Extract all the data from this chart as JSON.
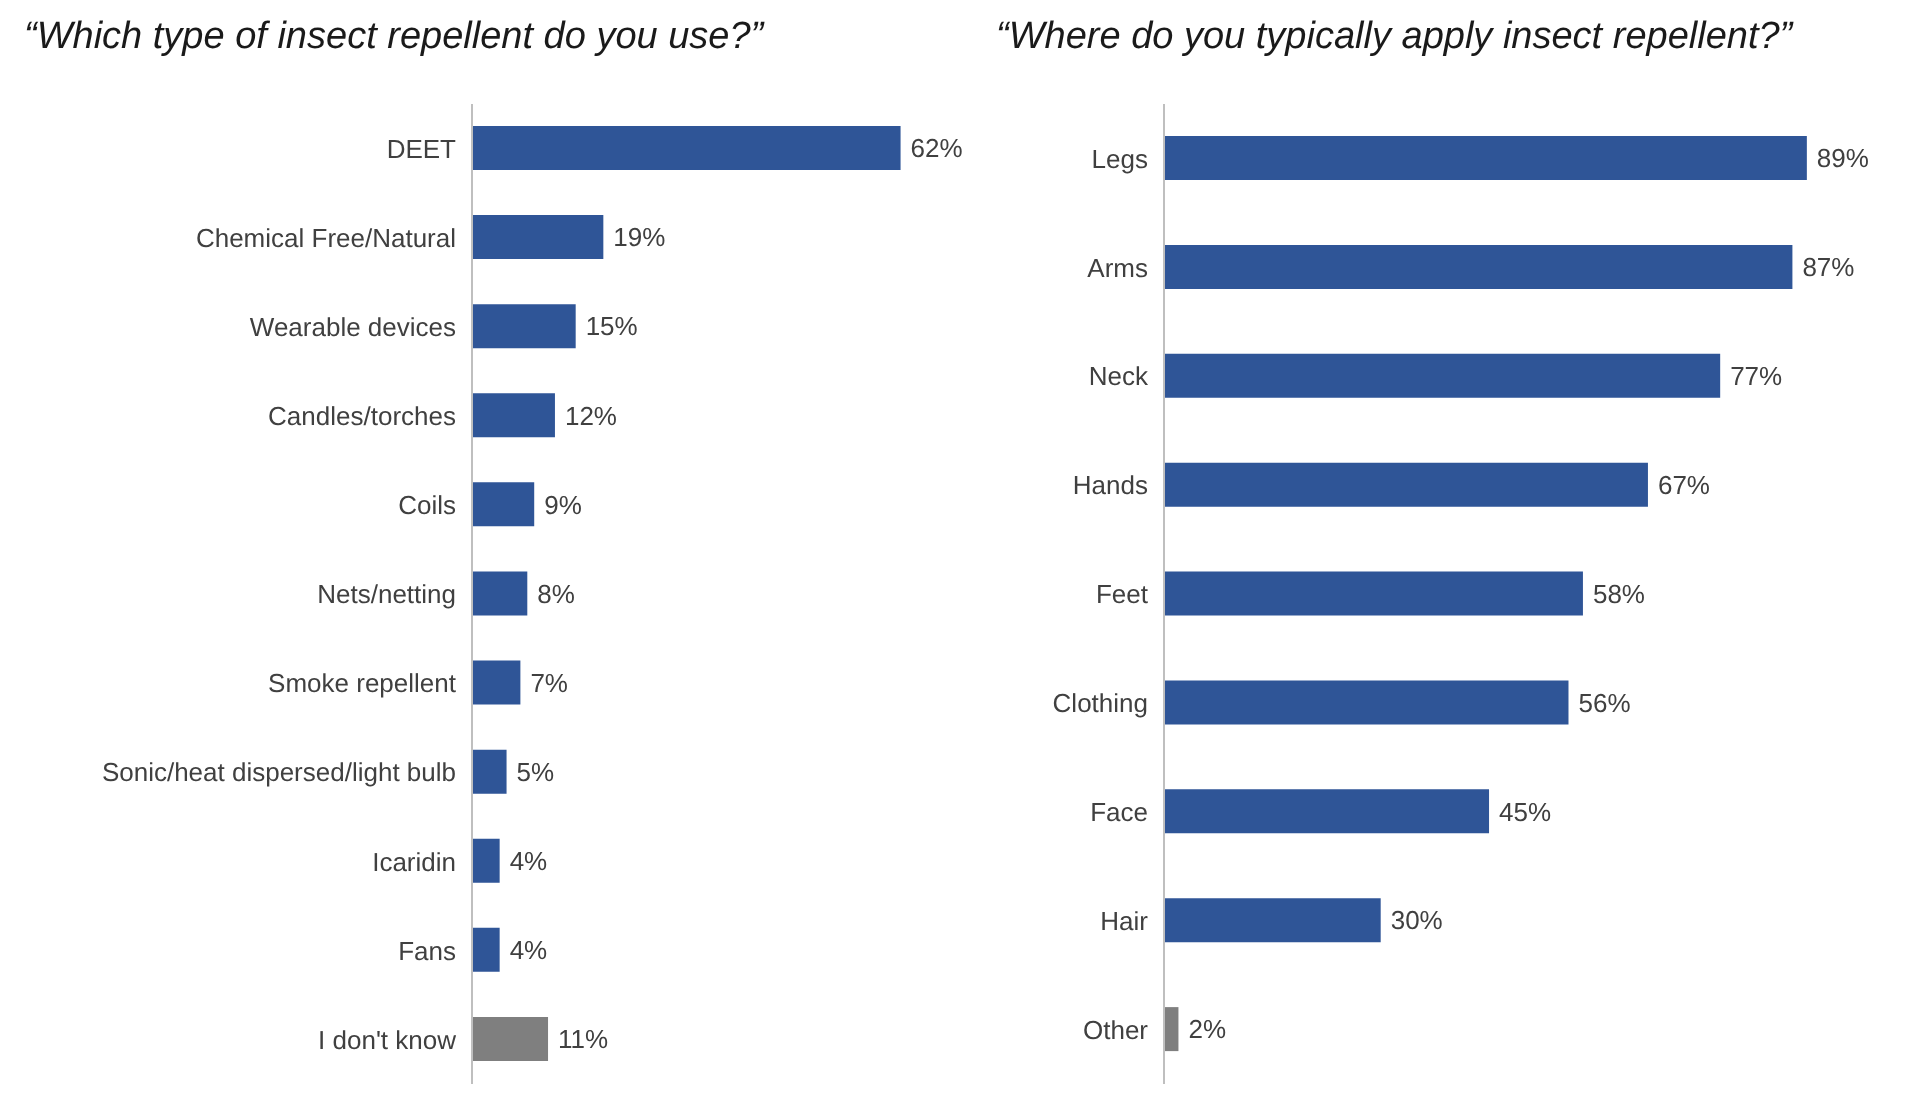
{
  "chart_data": [
    {
      "type": "bar",
      "orientation": "horizontal",
      "title": "“Which type of insect repellent do you use?”",
      "categories": [
        "DEET",
        "Chemical Free/Natural",
        "Wearable devices",
        "Candles/torches",
        "Coils",
        "Nets/netting",
        "Smoke repellent",
        "Sonic/heat dispersed/light bulb",
        "Icaridin",
        "Fans",
        "I don't know"
      ],
      "values": [
        62,
        19,
        15,
        12,
        9,
        8,
        7,
        5,
        4,
        4,
        11
      ],
      "value_labels": [
        "62%",
        "19%",
        "15%",
        "12%",
        "9%",
        "8%",
        "7%",
        "5%",
        "4%",
        "4%",
        "11%"
      ],
      "colors": [
        "#2f5597",
        "#2f5597",
        "#2f5597",
        "#2f5597",
        "#2f5597",
        "#2f5597",
        "#2f5597",
        "#2f5597",
        "#2f5597",
        "#2f5597",
        "#7f7f7f"
      ]
    },
    {
      "type": "bar",
      "orientation": "horizontal",
      "title": "“Where do you typically apply insect repellent?”",
      "categories": [
        "Legs",
        "Arms",
        "Neck",
        "Hands",
        "Feet",
        "Clothing",
        "Face",
        "Hair",
        "Other"
      ],
      "values": [
        89,
        87,
        77,
        67,
        58,
        56,
        45,
        30,
        2
      ],
      "value_labels": [
        "89%",
        "87%",
        "77%",
        "67%",
        "58%",
        "56%",
        "45%",
        "30%",
        "2%"
      ],
      "colors": [
        "#2f5597",
        "#2f5597",
        "#2f5597",
        "#2f5597",
        "#2f5597",
        "#2f5597",
        "#2f5597",
        "#2f5597",
        "#7f7f7f"
      ]
    }
  ]
}
